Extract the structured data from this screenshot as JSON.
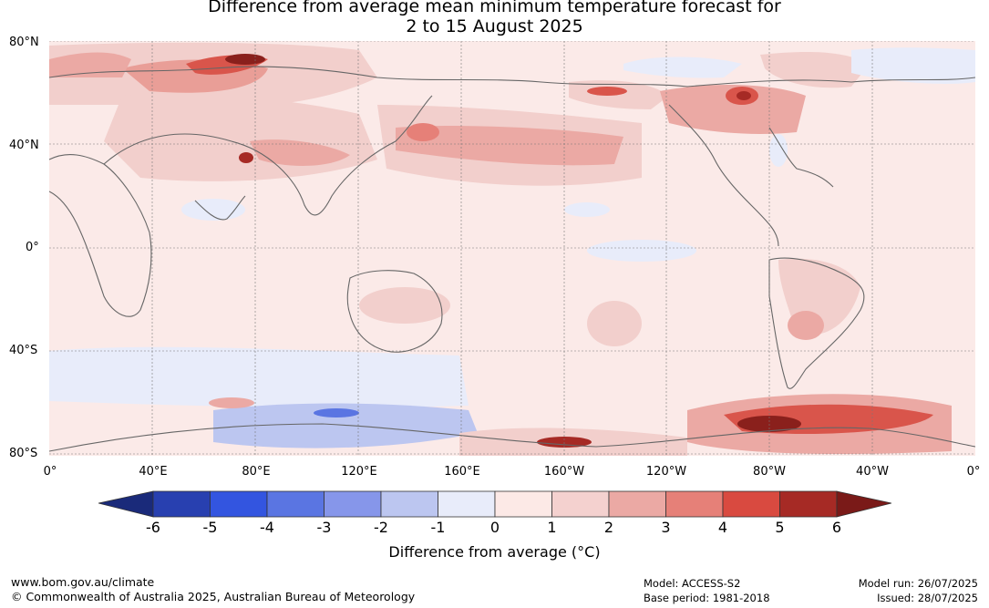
{
  "title_line1": "Difference from average mean minimum temperature forecast for",
  "title_line2": "2 to 15 August 2025",
  "lat_labels": [
    "80°N",
    "40°N",
    "0°",
    "40°S",
    "80°S"
  ],
  "lon_labels": [
    "0°",
    "40°E",
    "80°E",
    "120°E",
    "160°E",
    "160°W",
    "120°W",
    "80°W",
    "40°W",
    "0°"
  ],
  "colorbar": {
    "ticks": [
      "-6",
      "-5",
      "-4",
      "-3",
      "-2",
      "-1",
      "0",
      "1",
      "2",
      "3",
      "4",
      "5",
      "6"
    ],
    "colors": [
      "#1a2a7a",
      "#2840b0",
      "#3355e0",
      "#5a75e2",
      "#8696ea",
      "#bcc6f0",
      "#e8ecfa",
      "#fce9e6",
      "#f4d1cf",
      "#eba9a4",
      "#e68078",
      "#d94a40",
      "#a62a25",
      "#7a1a18"
    ],
    "label": "Difference from average (°C)"
  },
  "footer": {
    "url": "www.bom.gov.au/climate",
    "copyright": "© Commonwealth of Australia 2025, Australian Bureau of Meteorology",
    "model": "Model: ACCESS-S2",
    "base_period": "Base period: 1981-2018",
    "model_run": "Model run: 26/07/2025",
    "issued": "Issued: 28/07/2025"
  }
}
